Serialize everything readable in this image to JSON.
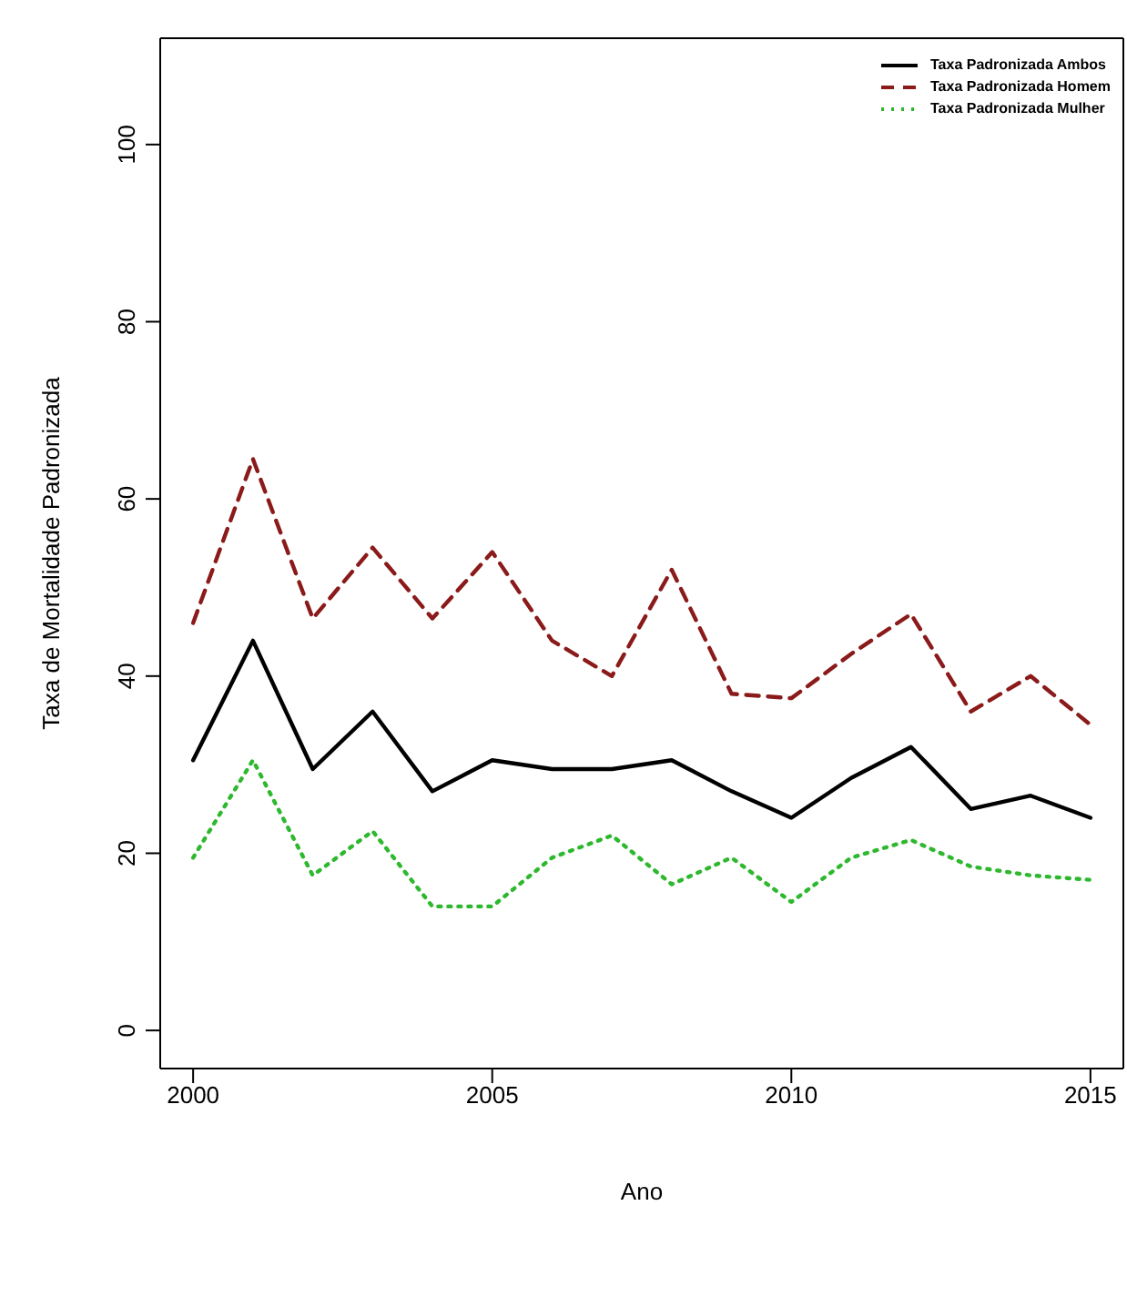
{
  "chart_data": {
    "type": "line",
    "xlabel": "Ano",
    "ylabel": "Taxa de Mortalidade Padronizada",
    "x": [
      2000,
      2001,
      2002,
      2003,
      2004,
      2005,
      2006,
      2007,
      2008,
      2009,
      2010,
      2011,
      2012,
      2013,
      2014,
      2015
    ],
    "series": [
      {
        "name": "Taxa Padronizada Ambos",
        "color": "#000000",
        "line_style": "solid",
        "values": [
          30.5,
          44,
          29.5,
          36,
          27,
          30.5,
          29.5,
          29.5,
          30.5,
          27,
          24,
          28.5,
          32,
          25,
          26.5,
          24
        ]
      },
      {
        "name": "Taxa Padronizada Homem",
        "color": "#8b1a1a",
        "line_style": "dashed",
        "values": [
          46,
          64.5,
          46.5,
          54.5,
          46.5,
          54,
          44,
          40,
          52,
          38,
          37.5,
          42.5,
          47,
          36,
          40,
          34.5
        ]
      },
      {
        "name": "Taxa Padronizada Mulher",
        "color": "#2eb82e",
        "line_style": "dotted",
        "values": [
          19.5,
          30.5,
          17.5,
          22.5,
          14,
          14,
          19.5,
          22,
          16.5,
          19.5,
          14.5,
          19.5,
          21.5,
          18.5,
          17.5,
          17
        ]
      }
    ],
    "xlim": [
      1999.45,
      2015.55
    ],
    "xticks": [
      2000,
      2005,
      2010,
      2015
    ],
    "ylim": [
      -4.3,
      112
    ],
    "yticks": [
      0,
      20,
      40,
      60,
      80,
      100
    ],
    "legend": "top right",
    "grid": false,
    "marker": "none"
  }
}
